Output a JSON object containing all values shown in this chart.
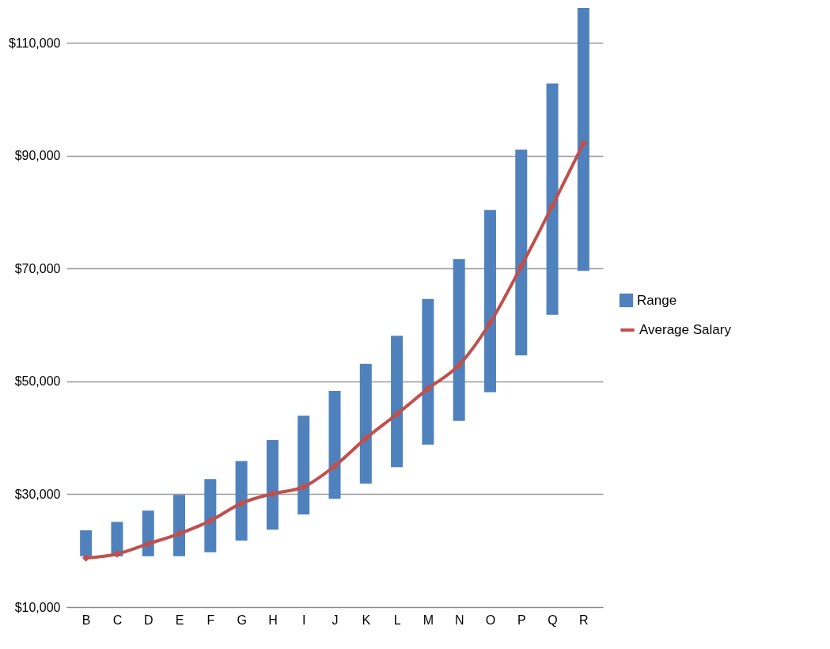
{
  "chart_data": {
    "type": "bar",
    "categories": [
      "B",
      "C",
      "D",
      "E",
      "F",
      "G",
      "H",
      "I",
      "J",
      "K",
      "L",
      "M",
      "N",
      "O",
      "P",
      "Q",
      "R"
    ],
    "series": [
      {
        "name": "Range",
        "color": "#4f81bd",
        "base": [
          19000,
          19000,
          19000,
          19000,
          19700,
          21800,
          23700,
          26400,
          29200,
          31900,
          34800,
          38800,
          43000,
          48100,
          54600,
          61800,
          69600
        ],
        "values": [
          4600,
          6100,
          8100,
          10900,
          13000,
          14100,
          15900,
          17500,
          19100,
          21200,
          23300,
          25800,
          28700,
          32300,
          36500,
          41000,
          46600
        ]
      },
      {
        "name": "Average Salary",
        "type": "line",
        "color": "#c0504d",
        "marker": "diamond",
        "values": [
          18700,
          19400,
          21200,
          23000,
          25300,
          28400,
          30100,
          31300,
          35000,
          39900,
          44200,
          48700,
          52900,
          60400,
          70400,
          81100,
          92200
        ]
      }
    ],
    "ylim": [
      10000,
      116200
    ],
    "yticks": [
      {
        "value": 10000,
        "label": "$10,000"
      },
      {
        "value": 30000,
        "label": "$30,000"
      },
      {
        "value": 50000,
        "label": "$50,000"
      },
      {
        "value": 70000,
        "label": "$70,000"
      },
      {
        "value": 90000,
        "label": "$90,000"
      },
      {
        "value": 110000,
        "label": "$110,000"
      }
    ],
    "grid": "y",
    "legend": "right"
  }
}
